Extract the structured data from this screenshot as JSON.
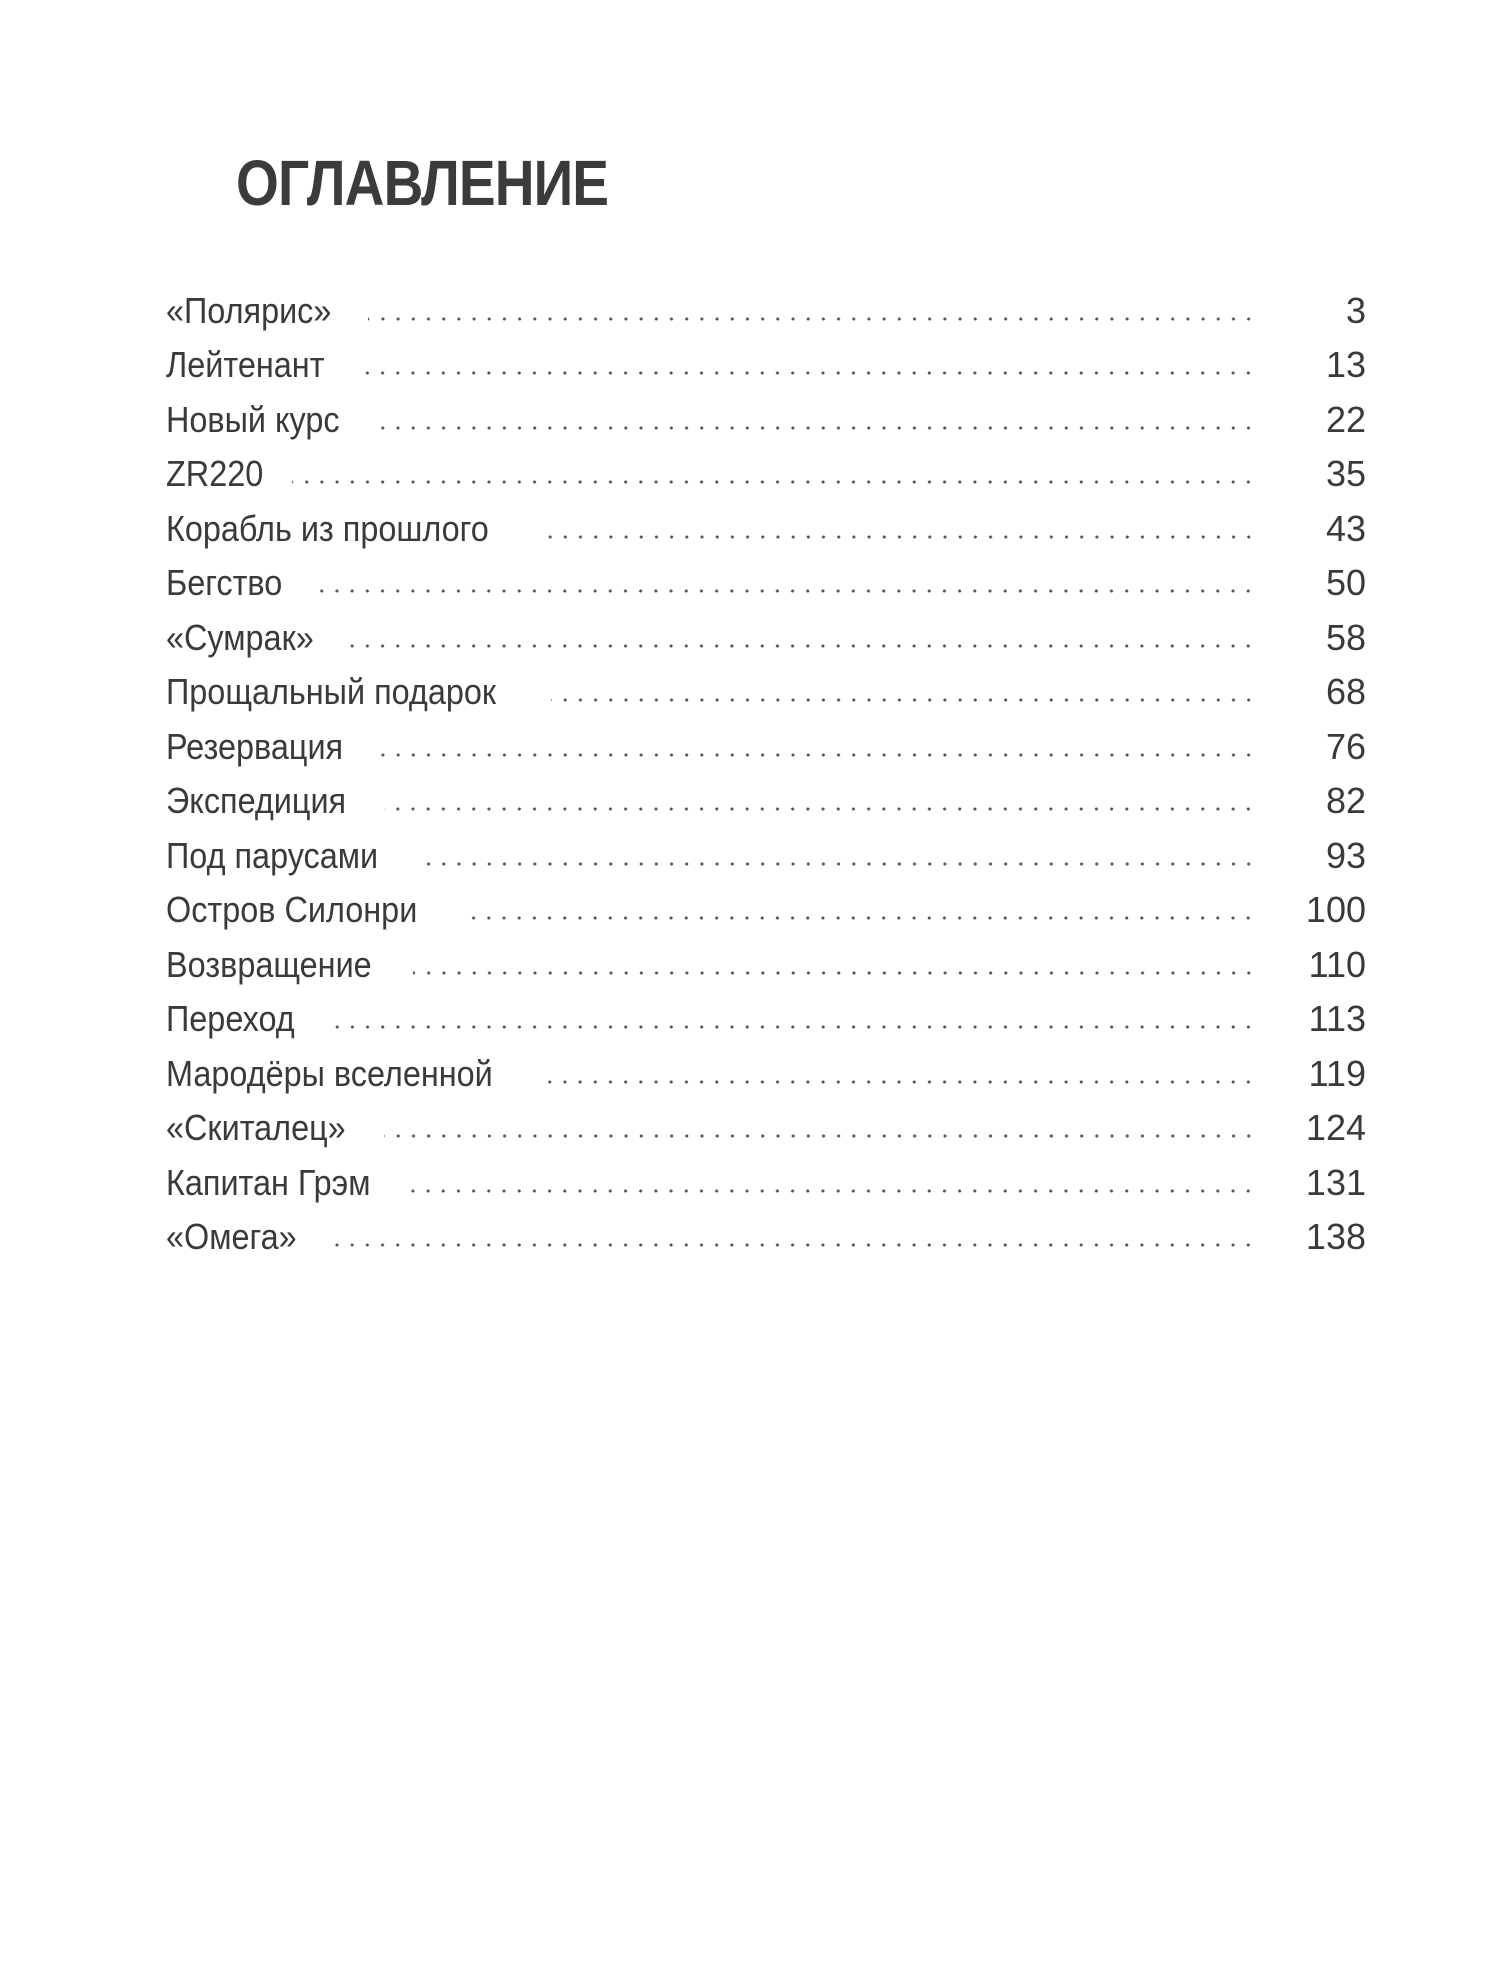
{
  "title": "ОГЛАВЛЕНИЕ",
  "entries": [
    {
      "label": "«Полярис»",
      "page": "3"
    },
    {
      "label": "Лейтенант",
      "page": "13"
    },
    {
      "label": "Новый курс",
      "page": "22"
    },
    {
      "label": "ZR220",
      "page": "35"
    },
    {
      "label": "Корабль из прошлого",
      "page": "43"
    },
    {
      "label": "Бегство",
      "page": "50"
    },
    {
      "label": "«Сумрак»",
      "page": "58"
    },
    {
      "label": "Прощальный подарок",
      "page": "68"
    },
    {
      "label": "Резервация",
      "page": "76"
    },
    {
      "label": "Экспедиция",
      "page": "82"
    },
    {
      "label": "Под парусами",
      "page": "93"
    },
    {
      "label": "Остров Силонри",
      "page": "100"
    },
    {
      "label": "Возвращение",
      "page": "110"
    },
    {
      "label": "Переход",
      "page": "113"
    },
    {
      "label": "Мародёры вселенной",
      "page": "119"
    },
    {
      "label": "«Скиталец»",
      "page": "124"
    },
    {
      "label": "Капитан Грэм",
      "page": "131"
    },
    {
      "label": "«Омега»",
      "page": "138"
    }
  ]
}
